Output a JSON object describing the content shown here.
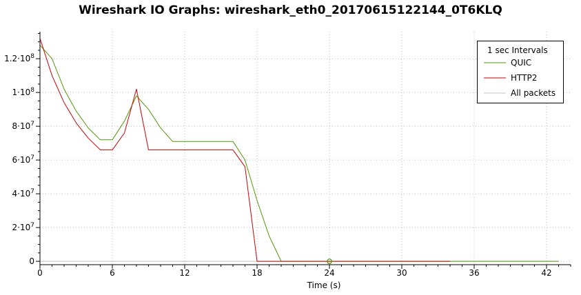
{
  "chart_data": {
    "type": "line",
    "title": "Wireshark IO Graphs: wireshark_eth0_20170615122144_0T6KLQ",
    "xlabel": "Time (s)",
    "ylabel": "",
    "xlim": [
      0,
      44
    ],
    "ylim": [
      -2000000,
      136000000
    ],
    "x_ticks": [
      0,
      6,
      12,
      18,
      24,
      30,
      36,
      42
    ],
    "x_tick_labels": [
      "0",
      "6",
      "12",
      "18",
      "24",
      "30",
      "36",
      "42"
    ],
    "y_ticks": [
      0,
      20000000,
      40000000,
      60000000,
      80000000,
      100000000,
      120000000
    ],
    "y_tick_labels": [
      {
        "base": "0",
        "exp": ""
      },
      {
        "base": "2·10",
        "exp": "7"
      },
      {
        "base": "4·10",
        "exp": "7"
      },
      {
        "base": "6·10",
        "exp": "7"
      },
      {
        "base": "8·10",
        "exp": "7"
      },
      {
        "base": "1·10",
        "exp": "8"
      },
      {
        "base": "1.2·10",
        "exp": "8"
      }
    ],
    "grid": true,
    "legend_position": "top-right",
    "legend_title": "1 sec Intervals",
    "series": [
      {
        "name": "QUIC",
        "color": "#4e9a06",
        "x": [
          0,
          1,
          2,
          3,
          4,
          5,
          6,
          7,
          8,
          9,
          10,
          11,
          12,
          13,
          14,
          15,
          16,
          17,
          18,
          19,
          20,
          21,
          22,
          23,
          24,
          25,
          26,
          27,
          28,
          29,
          30,
          31,
          32,
          33,
          34,
          35,
          36,
          37,
          38,
          39,
          40,
          41,
          42,
          43
        ],
        "y": [
          128000000,
          120000000,
          102000000,
          89000000,
          79000000,
          72000000,
          72000000,
          83000000,
          98000000,
          90000000,
          79000000,
          71000000,
          71000000,
          71000000,
          71000000,
          71000000,
          71000000,
          60000000,
          36000000,
          15000000,
          0,
          0,
          0,
          0,
          0,
          0,
          0,
          0,
          0,
          0,
          0,
          0,
          0,
          0,
          0,
          0,
          0,
          0,
          0,
          0,
          0,
          0,
          0,
          0
        ]
      },
      {
        "name": "HTTP2",
        "color": "#cc0000",
        "x": [
          0,
          1,
          2,
          3,
          4,
          5,
          6,
          7,
          8,
          9,
          10,
          11,
          12,
          13,
          14,
          15,
          16,
          17,
          18,
          19,
          20,
          21,
          22,
          23,
          24,
          25,
          26,
          27,
          28,
          29,
          30,
          31,
          32,
          33,
          34
        ],
        "y": [
          132000000,
          110000000,
          94000000,
          82000000,
          73000000,
          66000000,
          66000000,
          76000000,
          102000000,
          66000000,
          66000000,
          66000000,
          66000000,
          66000000,
          66000000,
          66000000,
          66000000,
          56000000,
          0,
          0,
          0,
          0,
          0,
          0,
          0,
          0,
          0,
          0,
          0,
          0,
          0,
          0,
          0,
          0,
          0
        ]
      },
      {
        "name": "All packets",
        "color": "#c0c0c0",
        "x": [
          0,
          43
        ],
        "y": [
          0,
          0
        ]
      }
    ],
    "marker": {
      "x": 24,
      "y": 0,
      "color": "#4e9a06"
    }
  }
}
